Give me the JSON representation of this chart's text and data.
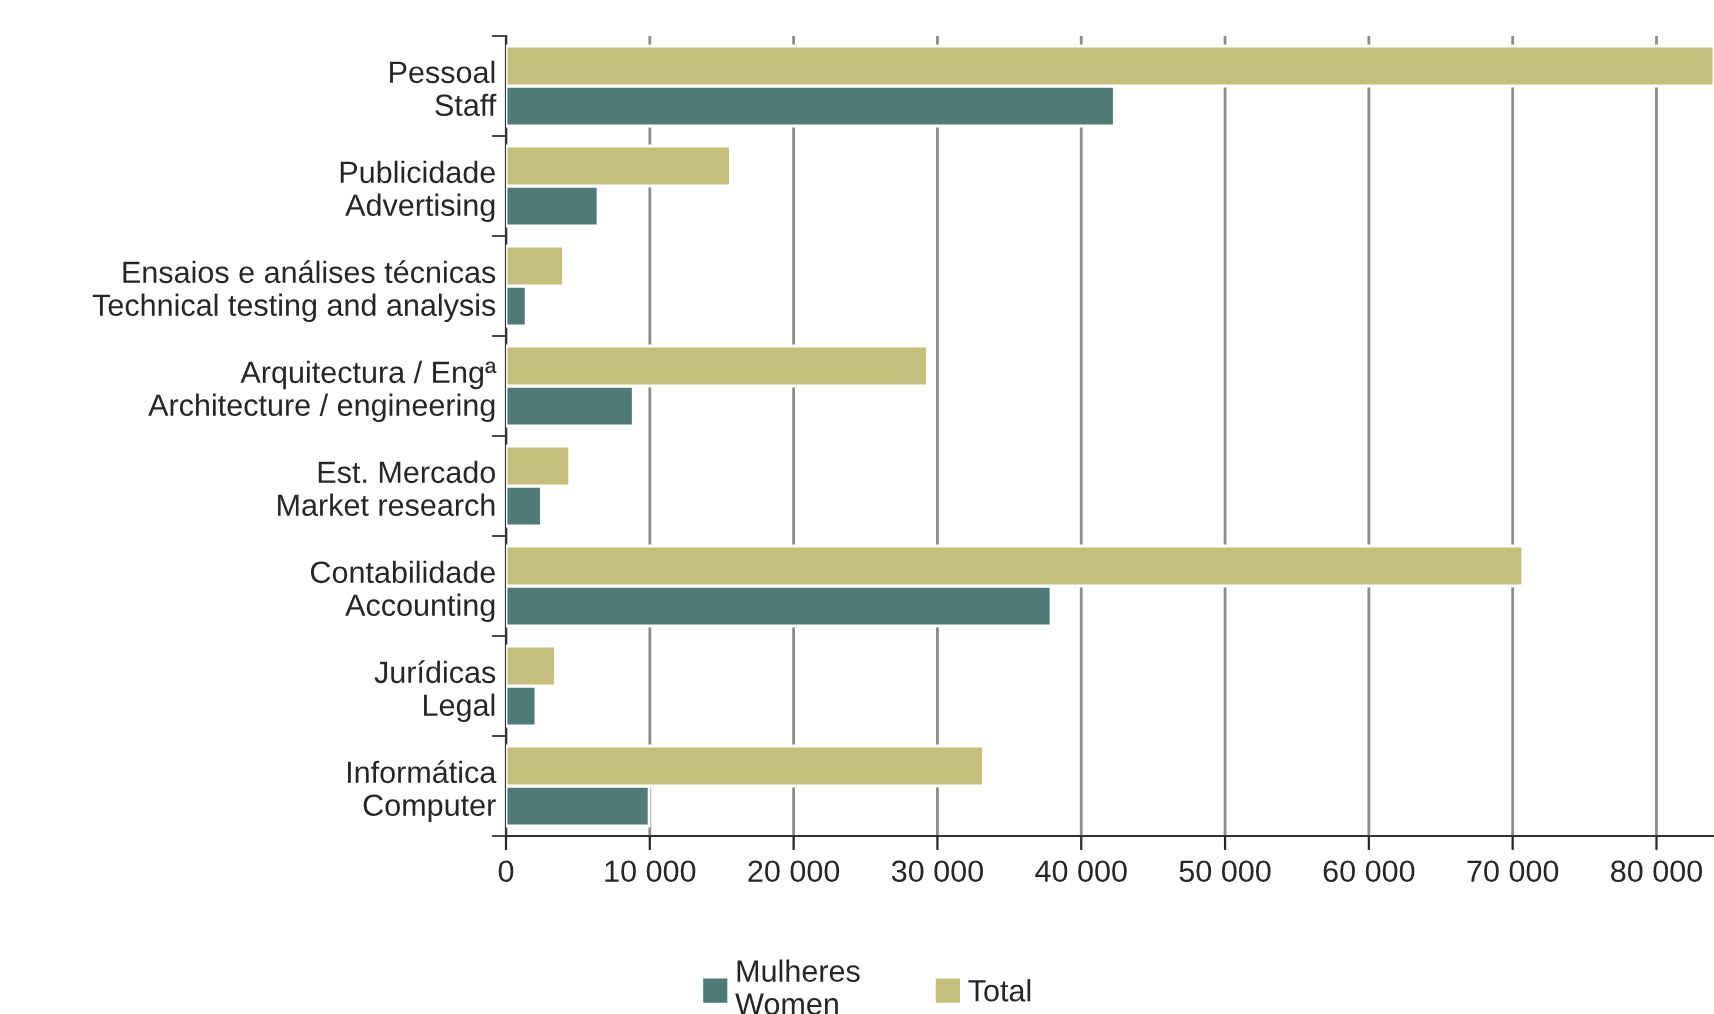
{
  "chart_data": {
    "type": "bar",
    "orientation": "horizontal",
    "categories": [
      "Pessoal\nStaff",
      "Publicidade\nAdvertising",
      "Ensaios e análises técnicas\nTechnical testing and analysis",
      "Arquitectura / Engª\nArchitecture / engineering",
      "Est. Mercado\nMarket research",
      "Contabilidade\nAccounting",
      "Jurídicas\nLegal",
      "Informática\nComputer"
    ],
    "series": [
      {
        "name": "Mulheres\nWomen",
        "color": "#4e7a78",
        "values": [
          42300,
          6400,
          1400,
          8850,
          2460,
          37900,
          2080,
          9950
        ]
      },
      {
        "name": "Total",
        "color": "#c6be7b",
        "values": [
          84000,
          15600,
          4000,
          29300,
          4430,
          70700,
          3440,
          33200
        ]
      }
    ],
    "xlim": [
      0,
      84000
    ],
    "xticks": [
      0,
      {
        "value": 10000,
        "label": "10 000"
      },
      {
        "value": 20000,
        "label": "20 000"
      },
      {
        "value": 30000,
        "label": "30 000"
      },
      {
        "value": 40000,
        "label": "40 000"
      },
      {
        "value": 50000,
        "label": "50 000"
      },
      {
        "value": 60000,
        "label": "60 000"
      },
      {
        "value": 70000,
        "label": "70 000"
      },
      {
        "value": 80000,
        "label": "80 000"
      }
    ],
    "grid": "x",
    "legend": "bottom"
  }
}
